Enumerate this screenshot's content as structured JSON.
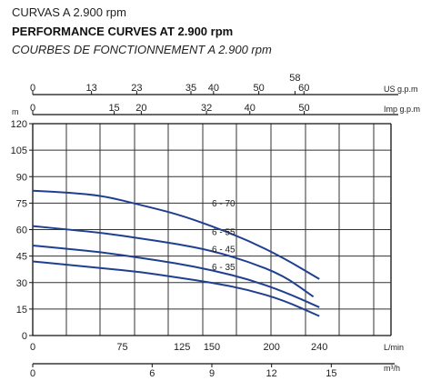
{
  "header": {
    "title_es": "CURVAS A 2.900 rpm",
    "title_en": "PERFORMANCE CURVES AT 2.900 rpm",
    "title_fr": "COURBES DE FONCTIONNEMENT A 2.900 rpm"
  },
  "chart_data": {
    "type": "line",
    "title": "PERFORMANCE CURVES AT 2.900 rpm",
    "ylabel": "m",
    "xlabel": "L/min",
    "ylim": [
      0,
      120
    ],
    "xlim": [
      0,
      300
    ],
    "grid": true,
    "y_ticks": [
      "0",
      "15",
      "30",
      "45",
      "60",
      "75",
      "90",
      "105",
      "120"
    ],
    "x_axes": {
      "us_gpm": {
        "unit": "US g.p.m",
        "ticks": [
          {
            "v": "0",
            "x": 0
          },
          {
            "v": "13",
            "x": 49.2
          },
          {
            "v": "23",
            "x": 87.1
          },
          {
            "v": "35",
            "x": 132.5
          },
          {
            "v": "40",
            "x": 151.4
          },
          {
            "v": "50",
            "x": 189.3
          },
          {
            "v": "58",
            "x": 219.6
          },
          {
            "v": "60",
            "x": 227.1
          }
        ]
      },
      "imp_gpm": {
        "unit": "Imp g.p.m",
        "ticks": [
          {
            "v": "0",
            "x": 0
          },
          {
            "v": "15",
            "x": 68.2
          },
          {
            "v": "20",
            "x": 90.9
          },
          {
            "v": "32",
            "x": 145.5
          },
          {
            "v": "40",
            "x": 181.8
          },
          {
            "v": "50",
            "x": 227.3
          }
        ]
      },
      "l_min": {
        "unit": "L/min",
        "ticks": [
          {
            "v": "0",
            "x": 0
          },
          {
            "v": "75",
            "x": 75
          },
          {
            "v": "125",
            "x": 125
          },
          {
            "v": "150",
            "x": 150
          },
          {
            "v": "200",
            "x": 200
          },
          {
            "v": "240",
            "x": 240
          }
        ]
      },
      "m3_h": {
        "unit": "m³/h",
        "ticks": [
          {
            "v": "0",
            "x": 0
          },
          {
            "v": "6",
            "x": 100
          },
          {
            "v": "9",
            "x": 150
          },
          {
            "v": "12",
            "x": 200
          },
          {
            "v": "15",
            "x": 250
          }
        ]
      }
    },
    "series": [
      {
        "name": "6 - 70",
        "x": [
          0,
          30,
          60,
          90,
          120,
          150,
          180,
          210,
          240
        ],
        "y": [
          82,
          81,
          79,
          74,
          69,
          62,
          54,
          44,
          32
        ]
      },
      {
        "name": "6 - 55",
        "x": [
          0,
          30,
          60,
          90,
          120,
          150,
          180,
          210,
          235
        ],
        "y": [
          62,
          60,
          58,
          55,
          52,
          48,
          42,
          34,
          22
        ]
      },
      {
        "name": "6 - 45",
        "x": [
          0,
          30,
          60,
          90,
          120,
          150,
          180,
          210,
          240
        ],
        "y": [
          51,
          49,
          47,
          44,
          41,
          37,
          32,
          25,
          16
        ]
      },
      {
        "name": "6 - 35",
        "x": [
          0,
          30,
          60,
          90,
          120,
          150,
          180,
          210,
          240
        ],
        "y": [
          42,
          40,
          38,
          36,
          33,
          30,
          26,
          20,
          11
        ]
      }
    ],
    "curve_color": "#1f3f8f"
  }
}
